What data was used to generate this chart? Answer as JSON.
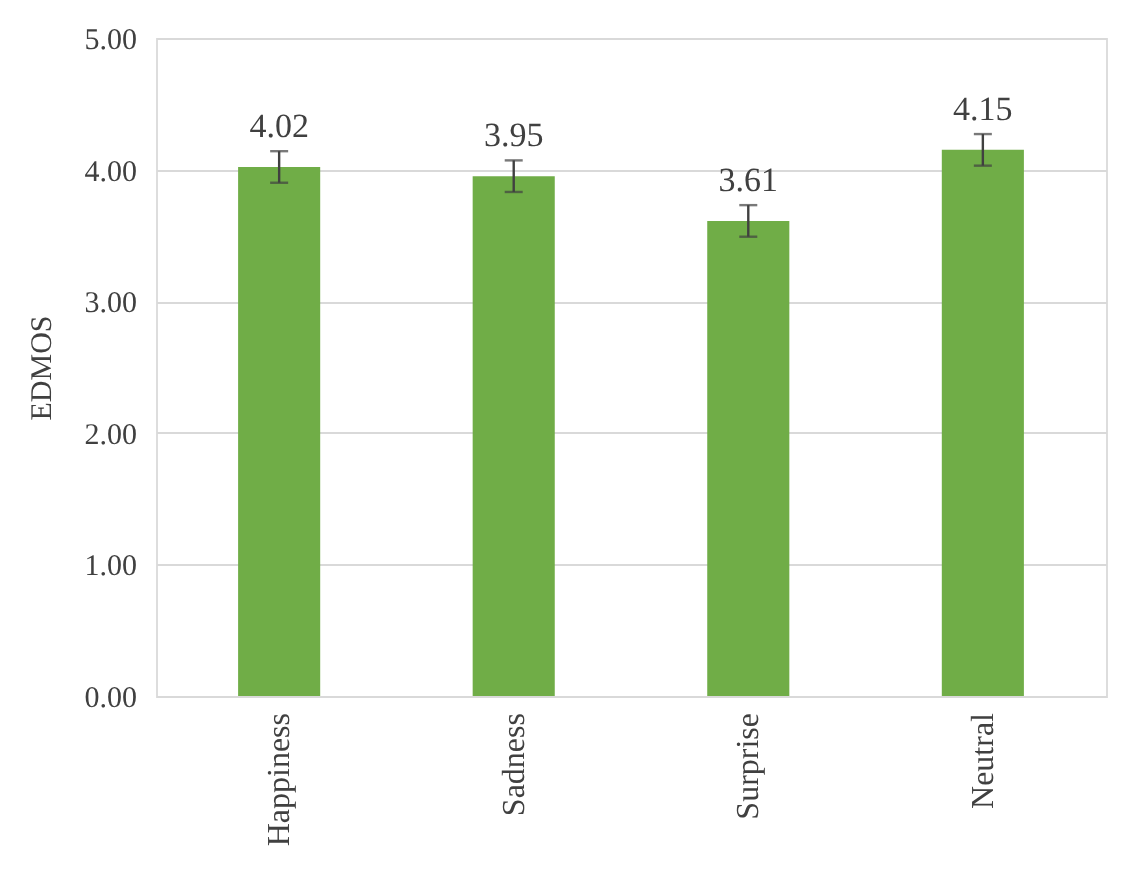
{
  "chart_data": {
    "type": "bar",
    "ylabel": "EDMOS",
    "categories": [
      "Happiness",
      "Sadness",
      "Surprise",
      "Neutral"
    ],
    "values": [
      4.02,
      3.95,
      3.61,
      4.15
    ],
    "errors": [
      0.12,
      0.12,
      0.12,
      0.12
    ],
    "color": "#70ad47",
    "ylim": [
      0,
      5
    ],
    "yticks": [
      {
        "value": 0,
        "label": "0.00"
      },
      {
        "value": 1,
        "label": "1.00"
      },
      {
        "value": 2,
        "label": "2.00"
      },
      {
        "value": 3,
        "label": "3.00"
      },
      {
        "value": 4,
        "label": "4.00"
      },
      {
        "value": 5,
        "label": "5.00"
      }
    ],
    "grid": "y",
    "data_labels": true
  }
}
